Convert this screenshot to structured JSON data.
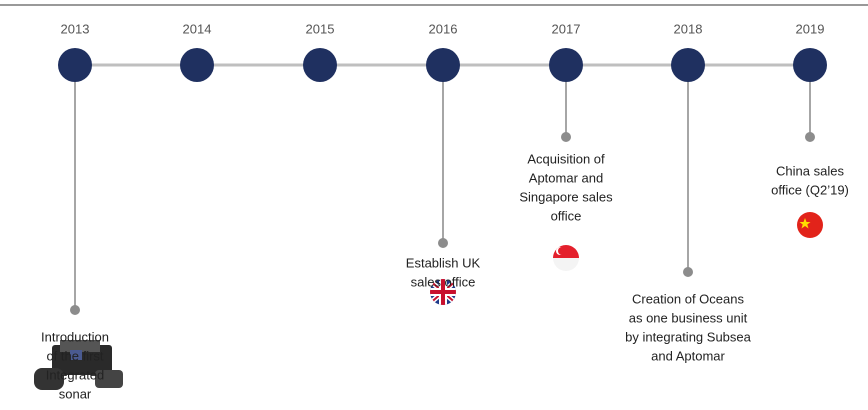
{
  "timeline": {
    "milestones": [
      {
        "year": "2013",
        "lines": [
          "Introduction",
          "of the first",
          "Integrated",
          "sonar"
        ]
      },
      {
        "year": "2014",
        "lines": []
      },
      {
        "year": "2015",
        "lines": []
      },
      {
        "year": "2016",
        "lines": [
          "Establish UK",
          "sales office"
        ]
      },
      {
        "year": "2017",
        "lines": [
          "Acquisition of",
          "Aptomar and",
          "Singapore sales",
          "office"
        ]
      },
      {
        "year": "2018",
        "lines": [
          "Creation of Oceans",
          "as one business unit",
          "by integrating Subsea",
          "and Aptomar"
        ]
      },
      {
        "year": "2019",
        "lines": [
          "China sales",
          "office (Q2’19)"
        ]
      }
    ]
  }
}
